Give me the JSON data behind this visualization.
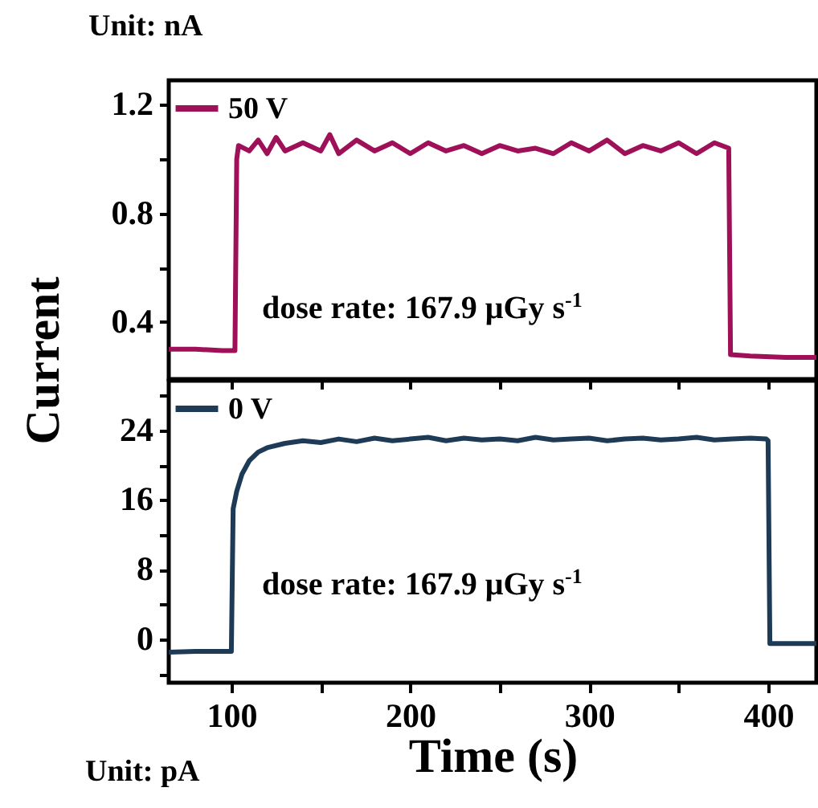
{
  "chart_data": [
    {
      "type": "line",
      "ylabel": "Current",
      "legend": "top left",
      "tick_labels": "y",
      "annotations": [
        "Unit: nA",
        "dose rate: 167.9 μGy s$^{-1}$"
      ],
      "xlim": [
        65,
        427
      ],
      "xticks": [
        100,
        {
          "value": 150,
          "label": null
        },
        200,
        {
          "value": 250,
          "label": null
        },
        300,
        {
          "value": 350,
          "label": null
        },
        400
      ],
      "ylim": [
        0.19,
        1.29
      ],
      "yticks": [
        0.4,
        {
          "value": 0.6,
          "label": null
        },
        0.8,
        {
          "value": 1.0,
          "label": null
        },
        1.2
      ],
      "series": [
        {
          "name": "50 V",
          "color": "#9e1058",
          "x": [
            65,
            80,
            95,
            102,
            103,
            104,
            110,
            115,
            120,
            125,
            130,
            140,
            150,
            155,
            160,
            170,
            180,
            190,
            200,
            210,
            220,
            230,
            240,
            250,
            260,
            270,
            280,
            290,
            300,
            310,
            320,
            330,
            340,
            350,
            360,
            370,
            378,
            379,
            390,
            410,
            427
          ],
          "values": [
            0.3,
            0.3,
            0.295,
            0.295,
            1.0,
            1.05,
            1.03,
            1.07,
            1.02,
            1.08,
            1.03,
            1.06,
            1.03,
            1.09,
            1.02,
            1.07,
            1.03,
            1.06,
            1.02,
            1.06,
            1.03,
            1.05,
            1.02,
            1.05,
            1.03,
            1.04,
            1.02,
            1.06,
            1.03,
            1.07,
            1.02,
            1.05,
            1.03,
            1.06,
            1.02,
            1.06,
            1.04,
            0.28,
            0.275,
            0.27,
            0.27
          ]
        }
      ]
    },
    {
      "type": "line",
      "xlabel": "Time (s)",
      "legend": "top left",
      "annotations": [
        "dose rate: 167.9 μGy s$^{-1}$",
        "Unit: pA"
      ],
      "xlim": [
        65,
        427
      ],
      "xticks": [
        100,
        {
          "value": 150,
          "label": null
        },
        200,
        {
          "value": 250,
          "label": null
        },
        300,
        {
          "value": 350,
          "label": null
        },
        400
      ],
      "ylim": [
        -5,
        29.7
      ],
      "yticks": [
        {
          "value": -4,
          "label": null
        },
        0,
        {
          "value": 4,
          "label": null
        },
        8,
        {
          "value": 12,
          "label": null
        },
        16,
        {
          "value": 20,
          "label": null
        },
        24,
        {
          "value": 28,
          "label": null
        }
      ],
      "series": [
        {
          "name": "0 V",
          "color": "#1d3a57",
          "x": [
            65,
            80,
            99,
            100,
            101,
            103,
            106,
            110,
            115,
            120,
            130,
            140,
            150,
            160,
            170,
            180,
            190,
            200,
            210,
            220,
            230,
            240,
            250,
            260,
            270,
            280,
            290,
            300,
            310,
            320,
            330,
            340,
            350,
            360,
            370,
            380,
            390,
            399,
            400,
            401,
            427
          ],
          "values": [
            -1.5,
            -1.4,
            -1.4,
            -1.4,
            15,
            17,
            19,
            20.5,
            21.5,
            22,
            22.5,
            22.8,
            22.6,
            23,
            22.7,
            23.1,
            22.8,
            23,
            23.2,
            22.8,
            23.1,
            22.9,
            23,
            22.8,
            23.2,
            22.9,
            23,
            23.1,
            22.8,
            23,
            23.1,
            22.9,
            23,
            23.2,
            22.9,
            23,
            23.1,
            23,
            22.8,
            -0.5,
            -0.5
          ]
        }
      ]
    }
  ]
}
